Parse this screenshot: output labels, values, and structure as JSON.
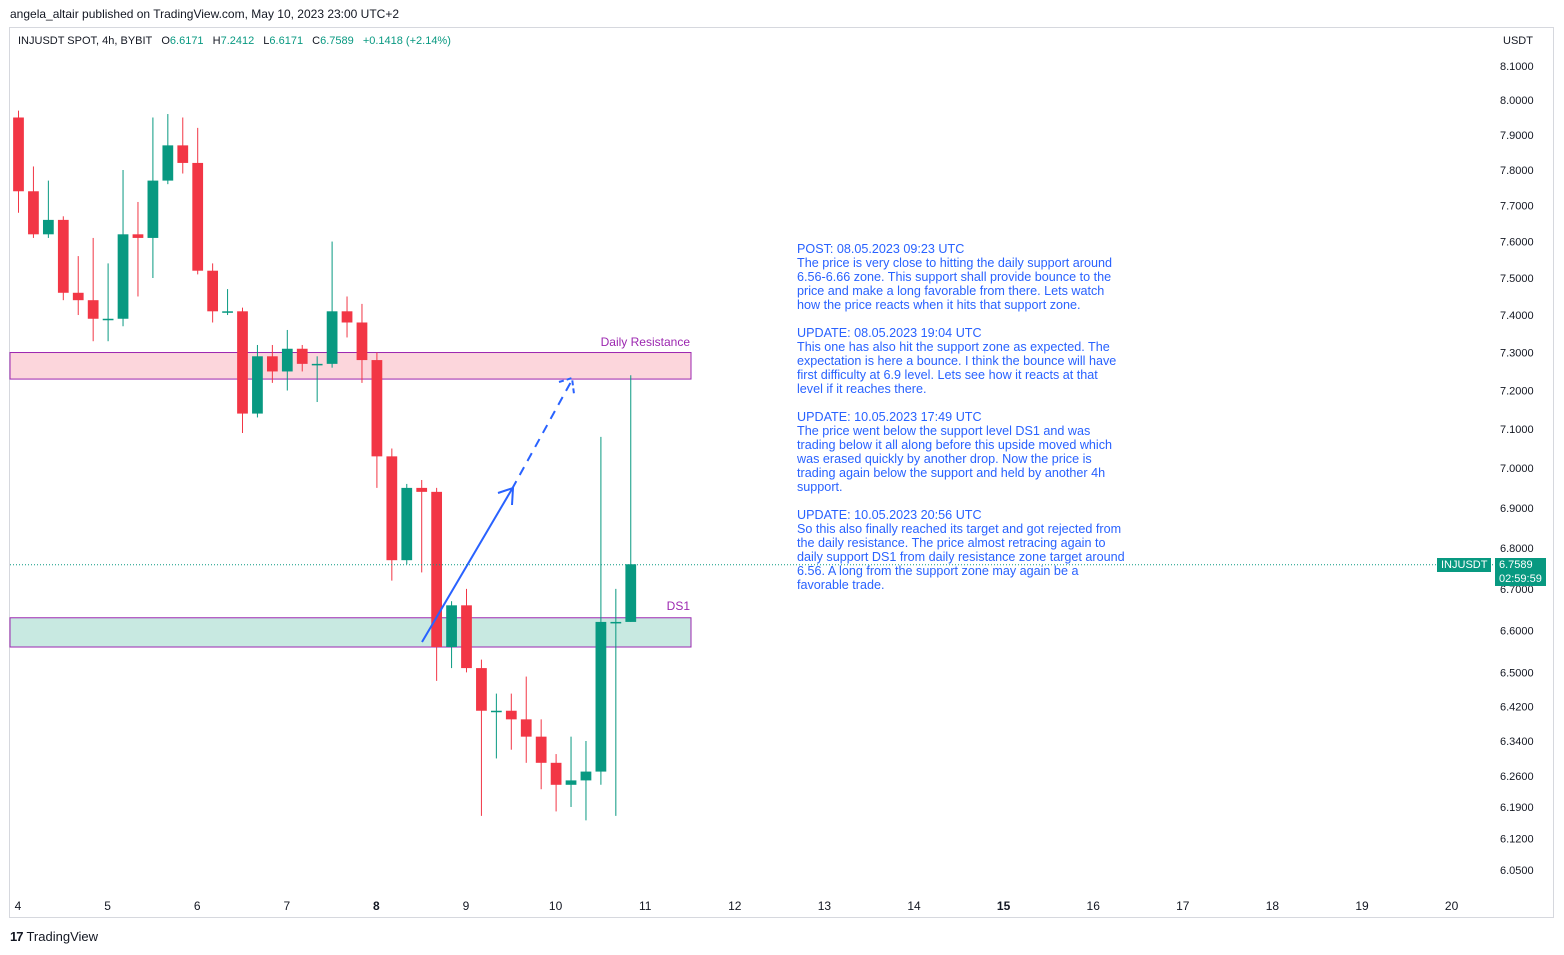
{
  "header": {
    "published": "angela_altair published on TradingView.com, May 10, 2023 23:00 UTC+2"
  },
  "legend": {
    "symbol": "INJUSDT SPOT, 4h, BYBIT",
    "open_label": "O",
    "open": "6.6171",
    "high_label": "H",
    "high": "7.2412",
    "low_label": "L",
    "low": "6.6171",
    "close_label": "C",
    "close": "6.7589",
    "change": "+0.1418 (+2.14%)"
  },
  "axis": {
    "currency": "USDT"
  },
  "last_price": {
    "symbol": "INJUSDT",
    "value": "6.7589",
    "countdown": "02:59:59"
  },
  "zones": {
    "resistance_label": "Daily Resistance",
    "support_label": "DS1"
  },
  "note": {
    "p1_title": "POST: 08.05.2023 09:23 UTC",
    "p1_body": "The price is very close to hitting the daily support around\n6.56-6.66 zone. This support shall provide bounce to the\nprice and make a long favorable from there. Lets watch\nhow the price reacts when it hits that support zone.",
    "p2_title": "UPDATE: 08.05.2023 19:04 UTC",
    "p2_body": "This one has also hit the support zone as expected. The\nexpectation is here a bounce. I think the bounce will have\nfirst difficulty at 6.9 level. Lets see how it reacts at that\nlevel if it reaches there.",
    "p3_title": "UPDATE: 10.05.2023 17:49 UTC",
    "p3_body": "The price went below the support level DS1 and was\ntrading below it all along before this upside moved which\nwas erased quickly by another drop. Now the price is\ntrading again below the support and held by another 4h\nsupport.",
    "p4_title": "UPDATE: 10.05.2023 20:56 UTC",
    "p4_body": "So this also finally reached its target and got rejected from\nthe daily resistance. The price almost retracing again to\ndaily support DS1 from daily resistance zone target around\n6.56. A long from the support zone may again be a\nfavorable trade."
  },
  "footer": {
    "brand": "TradingView",
    "logo": "17"
  },
  "colors": {
    "up": "#089981",
    "down": "#f23645",
    "resistance_fill": "#fcd6dc",
    "support_fill": "#c8e9e1",
    "zone_border": "#9c27b0",
    "note": "#2962ff"
  },
  "chart_data": {
    "type": "candlestick",
    "scale": "log",
    "ylim": [
      6.02,
      8.15
    ],
    "y_ticks": [
      8.1,
      8.0,
      7.9,
      7.8,
      7.7,
      7.6,
      7.5,
      7.4,
      7.3,
      7.2,
      7.1,
      7.0,
      6.9,
      6.8,
      6.7,
      6.6,
      6.5,
      6.42,
      6.34,
      6.26,
      6.19,
      6.12,
      6.05
    ],
    "y_tick_labels": [
      "8.1000",
      "8.0000",
      "7.9000",
      "7.8000",
      "7.7000",
      "7.6000",
      "7.5000",
      "7.4000",
      "7.3000",
      "7.2000",
      "7.1000",
      "7.0000",
      "6.9000",
      "6.8000",
      "6.7000",
      "6.6000",
      "6.5000",
      "6.4200",
      "6.3400",
      "6.2600",
      "6.1900",
      "6.1200",
      "6.0500"
    ],
    "x_labels": [
      "4",
      "5",
      "6",
      "7",
      "8",
      "9",
      "10",
      "11",
      "12",
      "13",
      "14",
      "15",
      "16",
      "17",
      "18",
      "19",
      "20"
    ],
    "x_label_bold": [
      "8",
      "15"
    ],
    "bars_per_day": 6,
    "first_bar_day": 4,
    "candles": [
      {
        "o": 7.95,
        "h": 7.97,
        "l": 7.68,
        "c": 7.74
      },
      {
        "o": 7.74,
        "h": 7.81,
        "l": 7.61,
        "c": 7.62
      },
      {
        "o": 7.62,
        "h": 7.77,
        "l": 7.61,
        "c": 7.66
      },
      {
        "o": 7.66,
        "h": 7.67,
        "l": 7.44,
        "c": 7.46
      },
      {
        "o": 7.46,
        "h": 7.56,
        "l": 7.4,
        "c": 7.44
      },
      {
        "o": 7.44,
        "h": 7.61,
        "l": 7.33,
        "c": 7.39
      },
      {
        "o": 7.39,
        "h": 7.54,
        "l": 7.33,
        "c": 7.39
      },
      {
        "o": 7.39,
        "h": 7.8,
        "l": 7.37,
        "c": 7.62
      },
      {
        "o": 7.62,
        "h": 7.71,
        "l": 7.45,
        "c": 7.61
      },
      {
        "o": 7.61,
        "h": 7.95,
        "l": 7.5,
        "c": 7.77
      },
      {
        "o": 7.77,
        "h": 7.96,
        "l": 7.76,
        "c": 7.87
      },
      {
        "o": 7.87,
        "h": 7.95,
        "l": 7.79,
        "c": 7.82
      },
      {
        "o": 7.82,
        "h": 7.92,
        "l": 7.51,
        "c": 7.52
      },
      {
        "o": 7.52,
        "h": 7.54,
        "l": 7.38,
        "c": 7.41
      },
      {
        "o": 7.41,
        "h": 7.47,
        "l": 7.4,
        "c": 7.41
      },
      {
        "o": 7.41,
        "h": 7.42,
        "l": 7.09,
        "c": 7.14
      },
      {
        "o": 7.14,
        "h": 7.32,
        "l": 7.13,
        "c": 7.29
      },
      {
        "o": 7.29,
        "h": 7.32,
        "l": 7.22,
        "c": 7.25
      },
      {
        "o": 7.25,
        "h": 7.36,
        "l": 7.2,
        "c": 7.31
      },
      {
        "o": 7.31,
        "h": 7.32,
        "l": 7.25,
        "c": 7.27
      },
      {
        "o": 7.27,
        "h": 7.29,
        "l": 7.17,
        "c": 7.27
      },
      {
        "o": 7.27,
        "h": 7.6,
        "l": 7.26,
        "c": 7.41
      },
      {
        "o": 7.41,
        "h": 7.45,
        "l": 7.34,
        "c": 7.38
      },
      {
        "o": 7.38,
        "h": 7.43,
        "l": 7.22,
        "c": 7.28
      },
      {
        "o": 7.28,
        "h": 7.3,
        "l": 6.95,
        "c": 7.03
      },
      {
        "o": 7.03,
        "h": 7.05,
        "l": 6.72,
        "c": 6.77
      },
      {
        "o": 6.77,
        "h": 6.96,
        "l": 6.76,
        "c": 6.95
      },
      {
        "o": 6.95,
        "h": 6.97,
        "l": 6.74,
        "c": 6.94
      },
      {
        "o": 6.94,
        "h": 6.95,
        "l": 6.48,
        "c": 6.56
      },
      {
        "o": 6.56,
        "h": 6.67,
        "l": 6.51,
        "c": 6.66
      },
      {
        "o": 6.66,
        "h": 6.7,
        "l": 6.5,
        "c": 6.51
      },
      {
        "o": 6.51,
        "h": 6.53,
        "l": 6.17,
        "c": 6.41
      },
      {
        "o": 6.41,
        "h": 6.45,
        "l": 6.3,
        "c": 6.41
      },
      {
        "o": 6.41,
        "h": 6.45,
        "l": 6.32,
        "c": 6.39
      },
      {
        "o": 6.39,
        "h": 6.49,
        "l": 6.29,
        "c": 6.35
      },
      {
        "o": 6.35,
        "h": 6.39,
        "l": 6.23,
        "c": 6.29
      },
      {
        "o": 6.29,
        "h": 6.31,
        "l": 6.18,
        "c": 6.24
      },
      {
        "o": 6.24,
        "h": 6.35,
        "l": 6.19,
        "c": 6.25
      },
      {
        "o": 6.25,
        "h": 6.34,
        "l": 6.16,
        "c": 6.27
      },
      {
        "o": 6.27,
        "h": 7.08,
        "l": 6.24,
        "c": 6.62
      },
      {
        "o": 6.62,
        "h": 6.7,
        "l": 6.17,
        "c": 6.62
      },
      {
        "o": 6.62,
        "h": 7.24,
        "l": 6.62,
        "c": 6.76
      }
    ],
    "resistance_zone": [
      7.23,
      7.3
    ],
    "support_zone": [
      6.56,
      6.63
    ],
    "last_price": 6.7589
  }
}
